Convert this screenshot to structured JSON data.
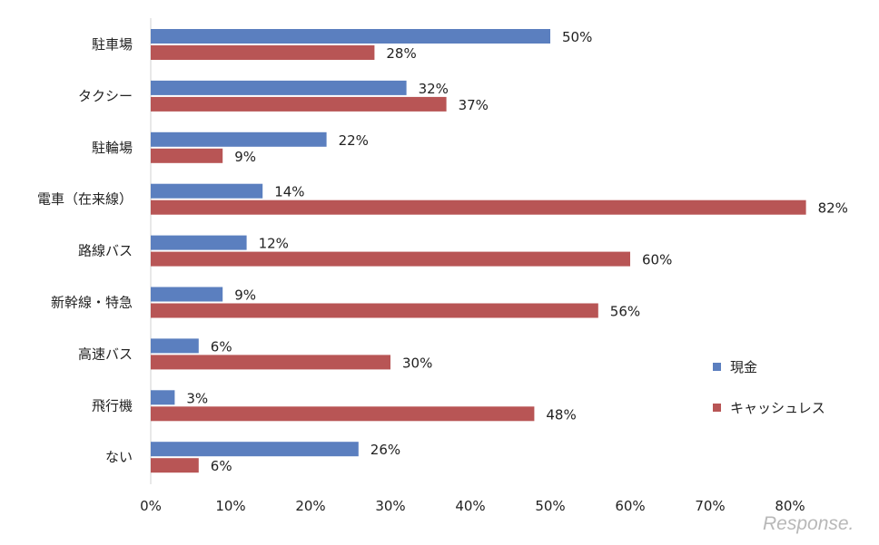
{
  "chart_data": {
    "type": "bar",
    "orientation": "horizontal",
    "categories": [
      "駐車場",
      "タクシー",
      "駐輪場",
      "電車（在来線）",
      "路線バス",
      "新幹線・特急",
      "高速バス",
      "飛行機",
      "ない"
    ],
    "series": [
      {
        "name": "現金",
        "color": "#5b7fbf",
        "values": [
          50,
          32,
          22,
          14,
          12,
          9,
          6,
          3,
          26
        ]
      },
      {
        "name": "キャッシュレス",
        "color": "#b85555",
        "values": [
          28,
          37,
          9,
          82,
          60,
          56,
          30,
          48,
          6
        ]
      }
    ],
    "value_suffix": "%",
    "xlim": [
      0,
      80
    ],
    "xticks": [
      "0%",
      "10%",
      "20%",
      "30%",
      "40%",
      "50%",
      "60%",
      "70%",
      "80%"
    ],
    "legend_position": "right",
    "grid": false
  },
  "watermark": "Response."
}
